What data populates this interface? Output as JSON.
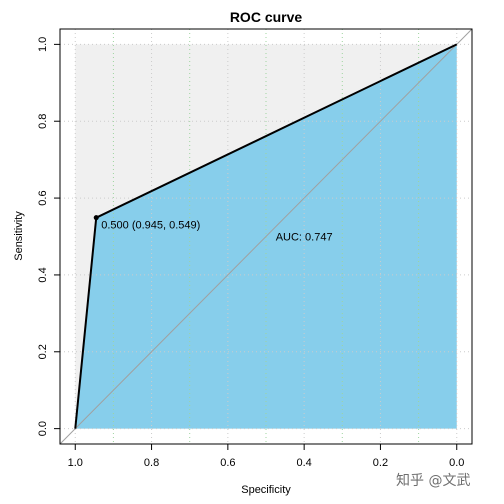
{
  "chart_data": {
    "type": "line",
    "title": "ROC curve",
    "xlabel": "Specificity",
    "ylabel": "Sensitivity",
    "x_axis_reversed": true,
    "xlim": [
      1.0,
      0.0
    ],
    "ylim": [
      0.0,
      1.0
    ],
    "x_ticks": [
      "1.0",
      "0.8",
      "0.6",
      "0.4",
      "0.2",
      "0.0"
    ],
    "y_ticks": [
      "0.0",
      "0.2",
      "0.4",
      "0.6",
      "0.8",
      "1.0"
    ],
    "grid": true,
    "series": [
      {
        "points": [
          {
            "specificity": 1.0,
            "sensitivity": 0.0
          },
          {
            "specificity": 0.945,
            "sensitivity": 0.549
          },
          {
            "specificity": 0.0,
            "sensitivity": 1.0
          }
        ]
      }
    ],
    "threshold_point": {
      "specificity": 0.945,
      "sensitivity": 0.549,
      "label": "0.500 (0.945, 0.549)"
    },
    "auc_label": "AUC: 0.747",
    "colors": {
      "auc_fill": "#87ceeb",
      "outer_fill": "#f0f0f0",
      "curve": "#000000",
      "grid": "#cccccc",
      "diagonal": "#a0a0a0"
    }
  },
  "watermark": "知乎 @文武"
}
